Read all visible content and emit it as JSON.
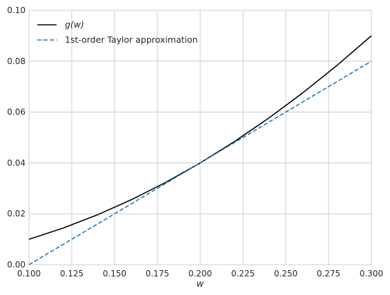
{
  "chart_data": {
    "type": "line",
    "xlabel": "w",
    "ylabel": "",
    "xlim": [
      0.1,
      0.3
    ],
    "ylim": [
      0.0,
      0.1
    ],
    "xticks": [
      "0.100",
      "0.125",
      "0.150",
      "0.175",
      "0.200",
      "0.225",
      "0.250",
      "0.275",
      "0.300"
    ],
    "yticks": [
      "0.00",
      "0.02",
      "0.04",
      "0.06",
      "0.08",
      "0.10"
    ],
    "grid": true,
    "legend_position": "top-left",
    "series": [
      {
        "name": "g(w)",
        "color": "#000000",
        "style": "solid",
        "x": [
          0.1,
          0.12,
          0.14,
          0.16,
          0.18,
          0.2,
          0.22,
          0.24,
          0.26,
          0.28,
          0.3
        ],
        "y": [
          0.01,
          0.0144,
          0.0196,
          0.0256,
          0.0324,
          0.04,
          0.0484,
          0.0576,
          0.0676,
          0.0784,
          0.09
        ]
      },
      {
        "name": "1st-order Taylor approximation",
        "color": "#1f77b4",
        "style": "dashed",
        "x": [
          0.1,
          0.3
        ],
        "y": [
          0.0,
          0.08
        ]
      }
    ]
  }
}
